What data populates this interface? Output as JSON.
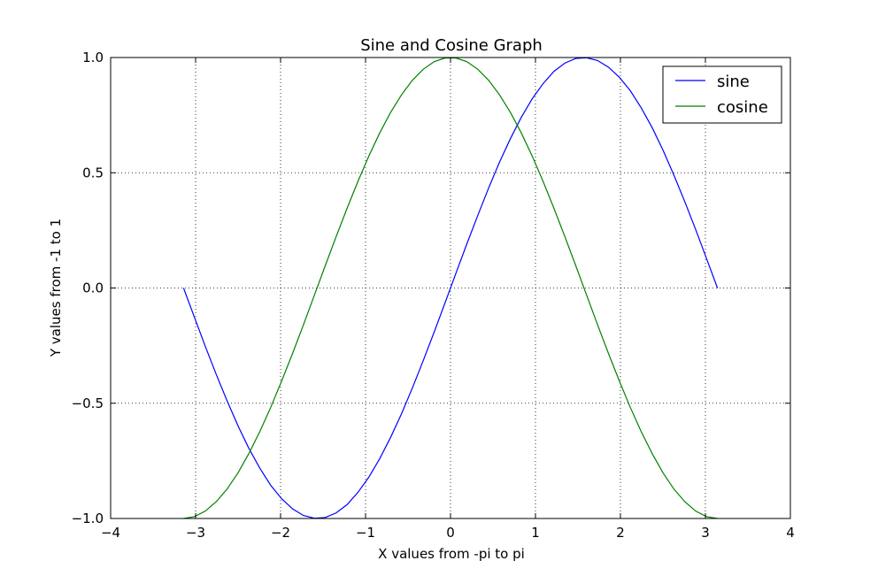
{
  "chart_data": {
    "type": "line",
    "title": "Sine and Cosine Graph",
    "xlabel": "X values from -pi to pi",
    "ylabel": "Y values from -1 to 1",
    "xlim": [
      -4,
      4
    ],
    "ylim": [
      -1.0,
      1.0
    ],
    "xticks": [
      -4,
      -3,
      -2,
      -1,
      0,
      1,
      2,
      3,
      4
    ],
    "xtick_labels": [
      "−4",
      "−3",
      "−2",
      "−1",
      "0",
      "1",
      "2",
      "3",
      "4"
    ],
    "yticks": [
      -1.0,
      -0.5,
      0.0,
      0.5,
      1.0
    ],
    "ytick_labels": [
      "−1.0",
      "−0.5",
      "0.0",
      "0.5",
      "1.0"
    ],
    "grid": true,
    "legend_position": "top-right",
    "x": [
      -3.142,
      -3.014,
      -2.886,
      -2.757,
      -2.629,
      -2.501,
      -2.373,
      -2.244,
      -2.116,
      -1.988,
      -1.86,
      -1.731,
      -1.603,
      -1.475,
      -1.347,
      -1.218,
      -1.09,
      -0.962,
      -0.834,
      -0.705,
      -0.577,
      -0.449,
      -0.321,
      -0.192,
      -0.064,
      0.064,
      0.192,
      0.321,
      0.449,
      0.577,
      0.705,
      0.834,
      0.962,
      1.09,
      1.218,
      1.347,
      1.475,
      1.603,
      1.731,
      1.86,
      1.988,
      2.116,
      2.244,
      2.373,
      2.501,
      2.629,
      2.757,
      2.886,
      3.014,
      3.142
    ],
    "series": [
      {
        "name": "sine",
        "color": "#0000ff",
        "values": [
          0.0,
          -0.127,
          -0.253,
          -0.375,
          -0.49,
          -0.598,
          -0.696,
          -0.782,
          -0.856,
          -0.914,
          -0.958,
          -0.987,
          -0.999,
          -0.996,
          -0.976,
          -0.94,
          -0.887,
          -0.821,
          -0.741,
          -0.648,
          -0.546,
          -0.434,
          -0.315,
          -0.191,
          -0.064,
          0.064,
          0.191,
          0.315,
          0.434,
          0.546,
          0.648,
          0.741,
          0.821,
          0.887,
          0.94,
          0.976,
          0.996,
          0.999,
          0.987,
          0.958,
          0.914,
          0.856,
          0.782,
          0.696,
          0.598,
          0.49,
          0.375,
          0.253,
          0.127,
          0.0
        ]
      },
      {
        "name": "cosine",
        "color": "#008000",
        "values": [
          -1.0,
          -0.992,
          -0.968,
          -0.927,
          -0.872,
          -0.802,
          -0.718,
          -0.623,
          -0.518,
          -0.404,
          -0.285,
          -0.16,
          -0.032,
          0.096,
          0.222,
          0.345,
          0.462,
          0.572,
          0.672,
          0.762,
          0.838,
          0.901,
          0.949,
          0.982,
          0.998,
          0.998,
          0.982,
          0.949,
          0.901,
          0.838,
          0.762,
          0.672,
          0.572,
          0.462,
          0.345,
          0.222,
          0.096,
          -0.032,
          -0.16,
          -0.285,
          -0.404,
          -0.518,
          -0.623,
          -0.718,
          -0.802,
          -0.872,
          -0.927,
          -0.968,
          -0.992,
          -1.0
        ]
      }
    ]
  }
}
